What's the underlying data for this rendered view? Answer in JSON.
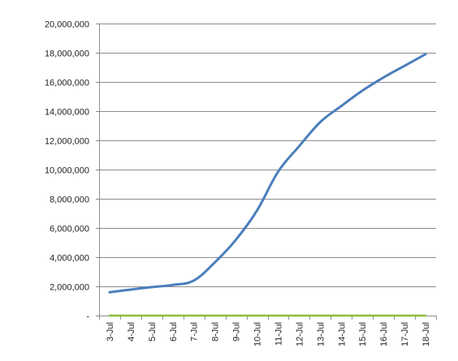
{
  "chart_data": {
    "type": "line",
    "title": "",
    "xlabel": "",
    "ylabel": "",
    "categories": [
      "3-Jul",
      "4-Jul",
      "5-Jul",
      "6-Jul",
      "7-Jul",
      "8-Jul",
      "9-Jul",
      "10-Jul",
      "11-Jul",
      "12-Jul",
      "13-Jul",
      "14-Jul",
      "15-Jul",
      "16-Jul",
      "17-Jul",
      "18-Jul"
    ],
    "ylim": [
      0,
      20000000
    ],
    "yticks": [
      0,
      2000000,
      4000000,
      6000000,
      8000000,
      10000000,
      12000000,
      14000000,
      16000000,
      18000000,
      20000000
    ],
    "ytick_labels": [
      "-",
      "2,000,000",
      "4,000,000",
      "6,000,000",
      "8,000,000",
      "10,000,000",
      "12,000,000",
      "14,000,000",
      "16,000,000",
      "18,000,000",
      "20,000,000"
    ],
    "grid": true,
    "legend": "none",
    "series": [
      {
        "color": "#4a7ebb",
        "values": [
          1600000,
          1780000,
          1950000,
          2100000,
          2400000,
          3650000,
          5200000,
          7200000,
          9850000,
          11600000,
          13250000,
          14350000,
          15400000,
          16300000,
          17100000,
          17900000
        ]
      },
      {
        "color": "#8cbe3c",
        "values": [
          0,
          0,
          0,
          0,
          0,
          0,
          0,
          0,
          0,
          0,
          0,
          0,
          0,
          0,
          0,
          0
        ]
      }
    ]
  }
}
